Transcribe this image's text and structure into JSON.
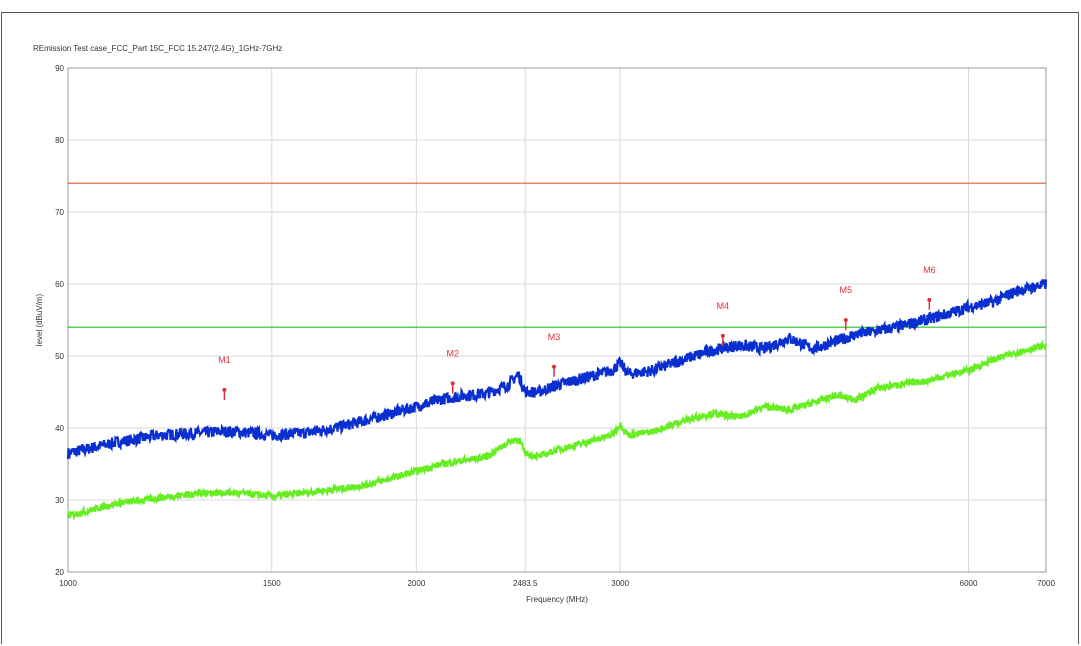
{
  "chart_data": {
    "type": "line",
    "title": "REmission Test case_FCC_Part 15C_FCC 15.247(2.4G)_1GHz-7GHz",
    "xlabel": "Frequency (MHz)",
    "ylabel": "level (dBuV/m)",
    "x_scale": "log",
    "xlim": [
      1000,
      7000
    ],
    "ylim": [
      20,
      90
    ],
    "x_ticks": [
      {
        "value": 1000,
        "label": "1000"
      },
      {
        "value": 1500,
        "label": "1500"
      },
      {
        "value": 2000,
        "label": "2000"
      },
      {
        "value": 2483.5,
        "label": "2483.5"
      },
      {
        "value": 3000,
        "label": "3000"
      },
      {
        "value": 6000,
        "label": "6000"
      },
      {
        "value": 7000,
        "label": "7000"
      }
    ],
    "y_ticks": [
      20,
      30,
      40,
      50,
      60,
      70,
      80,
      90
    ],
    "grid": true,
    "colors": {
      "peak_trace": "#0a2fd0",
      "average_trace": "#66ee22",
      "peak_limit": "#e05a3a",
      "average_limit": "#22c022",
      "markers": "#e0303a"
    },
    "limits": [
      {
        "level": 74,
        "color": "#e05a3a"
      },
      {
        "level": 54,
        "color": "#22c022"
      }
    ],
    "series": [
      {
        "color": "#0a2fd0",
        "x": [
          1000,
          1100,
          1200,
          1300,
          1350,
          1400,
          1500,
          1600,
          1700,
          1800,
          1900,
          2000,
          2100,
          2200,
          2300,
          2400,
          2450,
          2483.5,
          2550,
          2650,
          2800,
          2950,
          3000,
          3050,
          3200,
          3400,
          3600,
          3800,
          4000,
          4200,
          4400,
          4600,
          4800,
          5000,
          5200,
          5500,
          5800,
          6000,
          6300,
          6600,
          7000
        ],
        "y": [
          36.5,
          38.0,
          39.0,
          39.3,
          39.5,
          39.5,
          39.0,
          39.3,
          40.0,
          41.0,
          42.0,
          43.0,
          44.0,
          44.5,
          44.8,
          46.0,
          47.5,
          45.0,
          45.0,
          46.0,
          47.0,
          48.0,
          49.0,
          47.5,
          48.0,
          49.5,
          50.8,
          51.5,
          51.0,
          52.5,
          51.0,
          52.0,
          53.0,
          53.5,
          54.0,
          55.0,
          56.0,
          56.8,
          57.5,
          59.0,
          60.0
        ]
      },
      {
        "color": "#66ee22",
        "x": [
          1000,
          1100,
          1200,
          1300,
          1350,
          1400,
          1500,
          1600,
          1700,
          1800,
          1900,
          2000,
          2100,
          2200,
          2300,
          2400,
          2450,
          2483.5,
          2550,
          2650,
          2800,
          2950,
          3000,
          3050,
          3200,
          3400,
          3600,
          3800,
          4000,
          4200,
          4400,
          4600,
          4800,
          5000,
          5200,
          5500,
          5800,
          6000,
          6300,
          6600,
          7000
        ],
        "y": [
          27.8,
          29.5,
          30.3,
          31.0,
          31.0,
          31.0,
          30.5,
          31.0,
          31.5,
          32.0,
          33.0,
          34.0,
          35.0,
          35.5,
          36.0,
          38.0,
          38.5,
          36.5,
          36.0,
          37.0,
          38.0,
          39.0,
          40.5,
          39.0,
          39.5,
          41.0,
          42.0,
          41.5,
          43.0,
          42.5,
          43.5,
          44.5,
          44.0,
          45.5,
          46.0,
          46.5,
          47.5,
          48.0,
          49.5,
          50.5,
          51.5
        ]
      }
    ],
    "markers": [
      {
        "label": "M1",
        "freq": 1365,
        "level": 45.3
      },
      {
        "label": "M2",
        "freq": 2150,
        "level": 46.2
      },
      {
        "label": "M3",
        "freq": 2630,
        "level": 48.5
      },
      {
        "label": "M4",
        "freq": 3680,
        "level": 52.8
      },
      {
        "label": "M5",
        "freq": 4700,
        "level": 55.0
      },
      {
        "label": "M6",
        "freq": 5550,
        "level": 57.8
      }
    ]
  }
}
